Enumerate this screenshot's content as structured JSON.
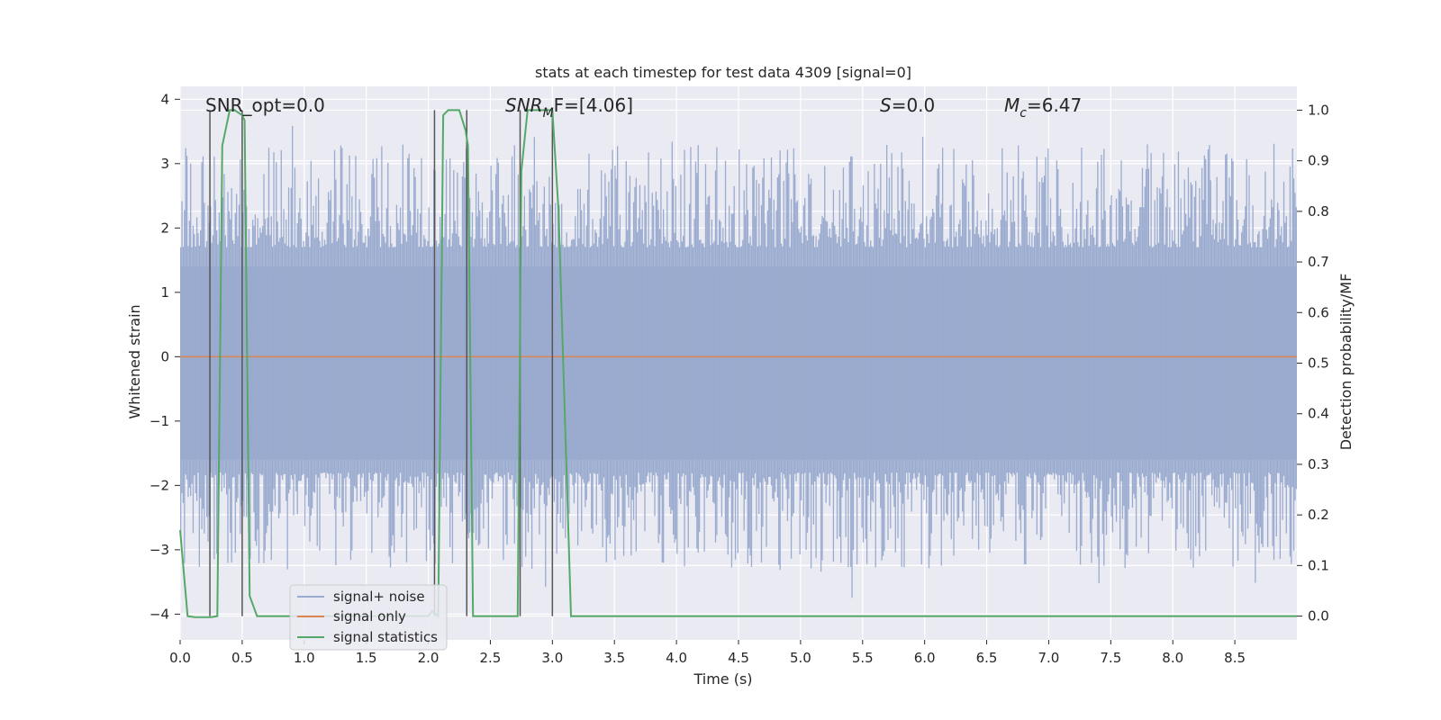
{
  "chart_data": {
    "type": "line",
    "title": "stats at each timestep for test data 4309 [signal=0]",
    "xlabel": "Time (s)",
    "ylabel": "Whitened strain",
    "ylabel_right": "Detection probability/MF",
    "xlim": [
      0.0,
      9.0
    ],
    "ylim": [
      -4.4,
      4.2
    ],
    "ylim_right": [
      -0.047,
      1.047
    ],
    "x_ticks": [
      0.0,
      0.5,
      1.0,
      1.5,
      2.0,
      2.5,
      3.0,
      3.5,
      4.0,
      4.5,
      5.0,
      5.5,
      6.0,
      6.5,
      7.0,
      7.5,
      8.0,
      8.5
    ],
    "x_tick_labels": [
      "0.0",
      "0.5",
      "1.0",
      "1.5",
      "2.0",
      "2.5",
      "3.0",
      "3.5",
      "4.0",
      "4.5",
      "5.0",
      "5.5",
      "6.0",
      "6.5",
      "7.0",
      "7.5",
      "8.0",
      "8.5"
    ],
    "y_ticks": [
      -4,
      -3,
      -2,
      -1,
      0,
      1,
      2,
      3,
      4
    ],
    "y_tick_labels": [
      "−4",
      "−3",
      "−2",
      "−1",
      "0",
      "1",
      "2",
      "3",
      "4"
    ],
    "y_ticks_right": [
      0.0,
      0.1,
      0.2,
      0.3,
      0.4,
      0.5,
      0.6,
      0.7,
      0.8,
      0.9,
      1.0
    ],
    "y_tick_labels_right": [
      "0.0",
      "0.1",
      "0.2",
      "0.3",
      "0.4",
      "0.5",
      "0.6",
      "0.7",
      "0.8",
      "0.9",
      "1.0"
    ],
    "grid": true,
    "legend_position": "lower-left",
    "annotations": {
      "snr_opt": "SNR_opt=0.0",
      "snr_mf_main": "SNR",
      "snr_mf_sub": "M",
      "snr_mf_rest": "F=[4.06]",
      "s_main": "S",
      "s_rest": "=0.0",
      "mc_main": "M",
      "mc_sub": "c",
      "mc_rest": "=6.47"
    },
    "series": [
      {
        "name": "signal+ noise",
        "color": "#9aabcf",
        "axis": "left",
        "description_envelope": {
          "typical_range": [
            -1.6,
            1.4
          ],
          "peak_max": 3.7,
          "peak_min": -4.0
        }
      },
      {
        "name": "signal only",
        "color": "#dd8452",
        "axis": "left",
        "x": [
          0.0,
          9.0
        ],
        "y": [
          0.0,
          0.0
        ]
      },
      {
        "name": "signal statistics",
        "color": "#55a868",
        "axis": "right",
        "x": [
          0.0,
          0.06,
          0.12,
          0.2,
          0.25,
          0.3,
          0.34,
          0.4,
          0.44,
          0.5,
          0.52,
          0.56,
          0.62,
          0.75,
          1.0,
          1.5,
          2.0,
          2.03,
          2.08,
          2.12,
          2.16,
          2.2,
          2.25,
          2.3,
          2.32,
          2.36,
          2.4,
          2.5,
          2.65,
          2.72,
          2.75,
          2.8,
          2.85,
          2.95,
          3.0,
          3.05,
          3.15,
          3.25,
          3.5,
          4.0,
          5.0,
          6.0,
          7.0,
          8.0,
          9.0
        ],
        "y": [
          0.17,
          0.0,
          -0.002,
          -0.002,
          -0.002,
          0.0,
          0.93,
          1.0,
          1.0,
          0.99,
          0.98,
          0.04,
          0.0,
          0.0,
          0.0,
          0.0,
          0.0,
          0.01,
          0.0,
          0.99,
          1.0,
          1.0,
          1.0,
          0.96,
          0.93,
          0.0,
          0.0,
          0.0,
          0.0,
          0.0,
          0.88,
          1.0,
          1.0,
          1.0,
          1.0,
          0.8,
          0.0,
          0.0,
          0.0,
          0.0,
          0.0,
          0.0,
          0.0,
          0.0,
          0.0
        ]
      }
    ],
    "vertical_markers": {
      "color": "#555555",
      "x": [
        0.24,
        0.5,
        2.05,
        2.31,
        2.74,
        3.0
      ]
    }
  }
}
